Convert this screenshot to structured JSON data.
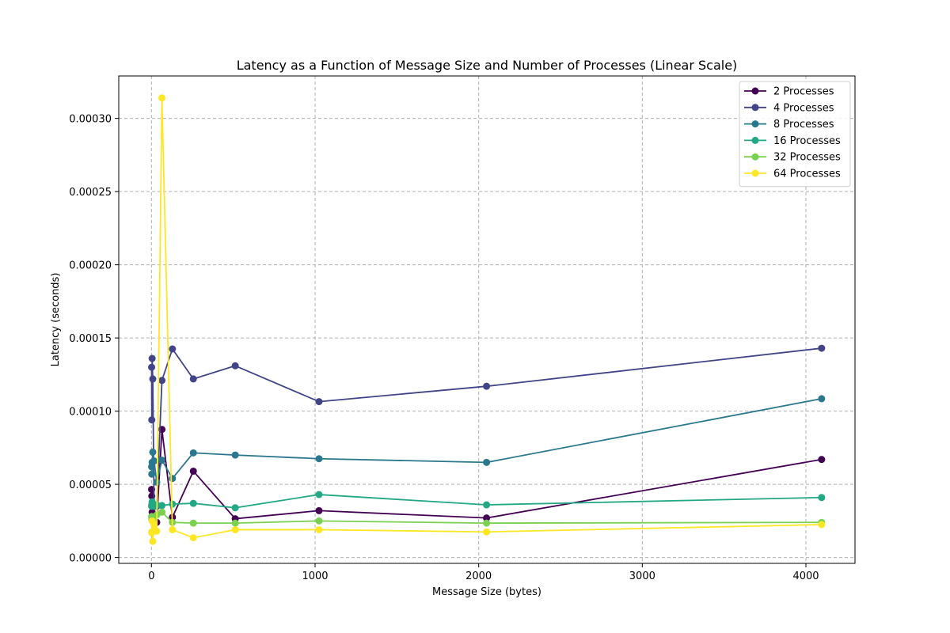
{
  "chart_data": {
    "type": "line",
    "title": "Latency as a Function of Message Size and Number of Processes (Linear Scale)",
    "xlabel": "Message Size (bytes)",
    "ylabel": "Latency (seconds)",
    "xlim": [
      -200,
      4300
    ],
    "ylim": [
      -4e-06,
      0.000329
    ],
    "xticks": [
      0,
      1000,
      2000,
      3000,
      4000
    ],
    "xtick_labels": [
      "0",
      "1000",
      "2000",
      "3000",
      "4000"
    ],
    "yticks": [
      0,
      5e-05,
      0.0001,
      0.00015,
      0.0002,
      0.00025,
      0.0003
    ],
    "ytick_labels": [
      "0.00000",
      "0.00005",
      "0.00010",
      "0.00015",
      "0.00020",
      "0.00025",
      "0.00030"
    ],
    "grid": true,
    "legend_position": "top-right",
    "x": [
      1,
      2,
      4,
      8,
      16,
      32,
      64,
      128,
      256,
      512,
      1024,
      2048,
      4096
    ],
    "series": [
      {
        "name": "2 Processes",
        "color": "#440154",
        "values": [
          4.65e-05,
          4.2e-05,
          3.1e-05,
          2.5e-05,
          2.4e-05,
          2.4e-05,
          8.75e-05,
          2.75e-05,
          5.9e-05,
          2.65e-05,
          3.2e-05,
          2.7e-05,
          6.7e-05
        ]
      },
      {
        "name": "4 Processes",
        "color": "#414487",
        "values": [
          0.00013,
          9.4e-05,
          0.000136,
          0.000122,
          3.5e-05,
          3.5e-05,
          0.000121,
          0.0001425,
          0.000122,
          0.000131,
          0.0001065,
          0.000117,
          0.000143
        ]
      },
      {
        "name": "8 Processes",
        "color": "#2a788e",
        "values": [
          6.2e-05,
          5.7e-05,
          6.5e-05,
          7.2e-05,
          6.6e-05,
          5.15e-05,
          6.65e-05,
          5.4e-05,
          7.15e-05,
          7e-05,
          6.75e-05,
          6.5e-05,
          0.0001085
        ]
      },
      {
        "name": "16 Processes",
        "color": "#22a884",
        "values": [
          3.5e-05,
          3.6e-05,
          3.8e-05,
          3.6e-05,
          3.5e-05,
          3.6e-05,
          3.55e-05,
          3.65e-05,
          3.7e-05,
          3.4e-05,
          4.3e-05,
          3.6e-05,
          4.1e-05
        ]
      },
      {
        "name": "32 Processes",
        "color": "#7ad151",
        "values": [
          2.8e-05,
          2.6e-05,
          2.7e-05,
          2.5e-05,
          2.4e-05,
          2.9e-05,
          3.1e-05,
          2.4e-05,
          2.35e-05,
          2.35e-05,
          2.5e-05,
          2.35e-05,
          2.4e-05
        ]
      },
      {
        "name": "64 Processes",
        "color": "#fde725",
        "values": [
          1.7e-05,
          1.75e-05,
          2.5e-05,
          1.1e-05,
          2.25e-05,
          1.8e-05,
          0.000314,
          1.9e-05,
          1.35e-05,
          1.9e-05,
          1.9e-05,
          1.75e-05,
          2.25e-05
        ]
      }
    ]
  }
}
